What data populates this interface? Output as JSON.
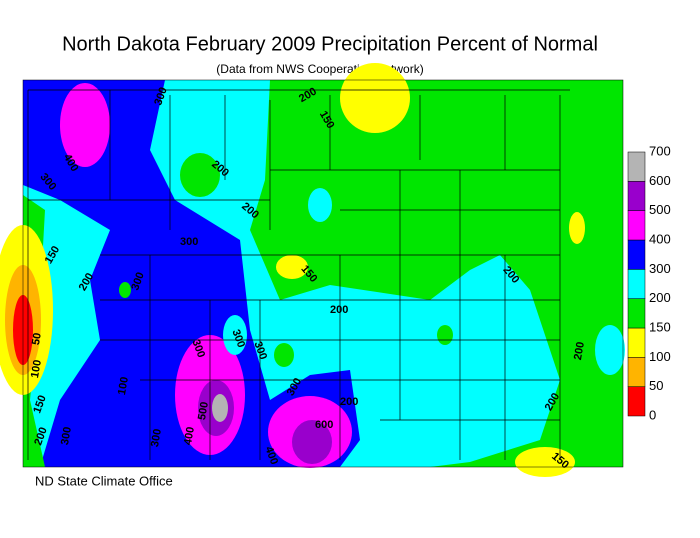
{
  "header": {
    "title": "North Dakota February 2009 Precipitation Percent of Normal",
    "subtitle": "(Data from NWS Cooperative Network)"
  },
  "footer": "ND State Climate Office",
  "legend": {
    "levels": [
      0,
      50,
      100,
      150,
      200,
      300,
      400,
      500,
      600,
      700
    ],
    "colors": [
      "#ff0000",
      "#ffb400",
      "#ffff00",
      "#00e600",
      "#00ffff",
      "#0000ff",
      "#ff00ff",
      "#9900cc",
      "#b4b4b4"
    ]
  },
  "contour_labels": [
    "300",
    "400",
    "300",
    "200",
    "150",
    "200",
    "200",
    "300",
    "150",
    "200",
    "300",
    "150",
    "200",
    "100",
    "50",
    "300",
    "300",
    "200",
    "150",
    "100",
    "300",
    "500",
    "300",
    "400",
    "300",
    "600",
    "300",
    "400",
    "200",
    "200",
    "200",
    "150",
    "200"
  ]
}
